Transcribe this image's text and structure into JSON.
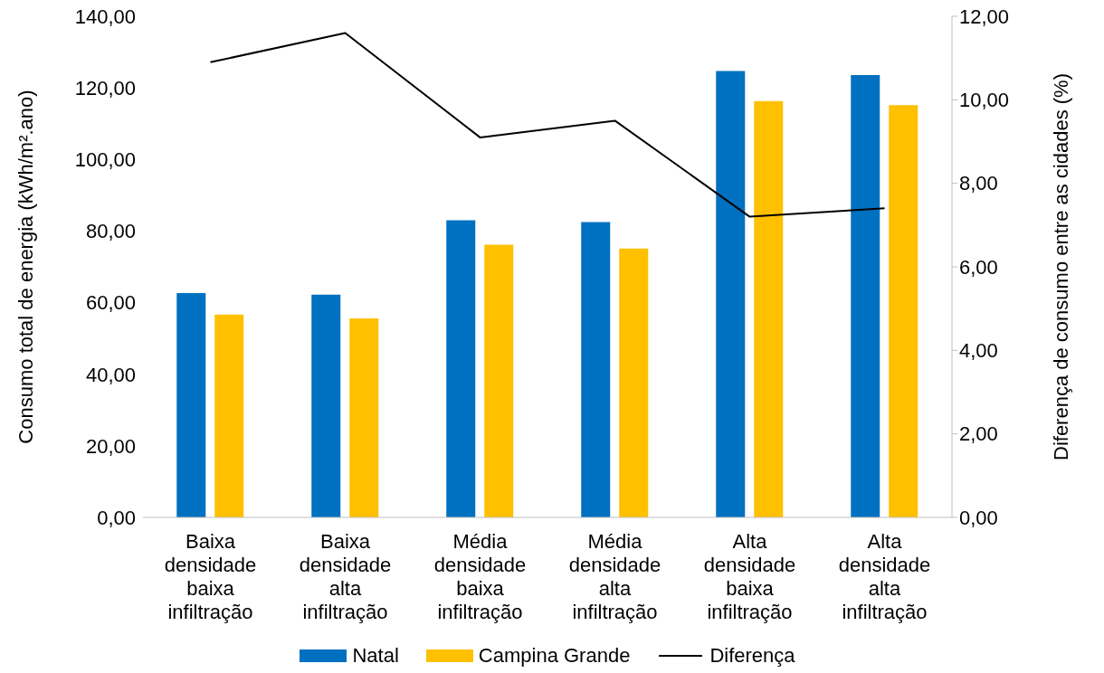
{
  "chart_data": {
    "type": "bar",
    "categories": [
      "Baixa densidade baixa infiltração",
      "Baixa densidade alta infiltração",
      "Média densidade baixa infiltração",
      "Média densidade alta infiltração",
      "Alta densidade baixa infiltração",
      "Alta densidade alta infiltração"
    ],
    "ylabel": "Consumo total de energia (kWh/m².ano)",
    "y2label": "Diferença de consumo entre as cidades (%)",
    "ylim": [
      0,
      140
    ],
    "yticks": [
      {
        "value": 0,
        "label": "0,00"
      },
      {
        "value": 20,
        "label": "20,00"
      },
      {
        "value": 40,
        "label": "40,00"
      },
      {
        "value": 60,
        "label": "60,00"
      },
      {
        "value": 80,
        "label": "80,00"
      },
      {
        "value": 100,
        "label": "100,00"
      },
      {
        "value": 120,
        "label": "120,00"
      },
      {
        "value": 140,
        "label": "140,00"
      }
    ],
    "y2lim": [
      0,
      12
    ],
    "y2ticks": [
      {
        "value": 0,
        "label": "0,00"
      },
      {
        "value": 2,
        "label": "2,00"
      },
      {
        "value": 4,
        "label": "4,00"
      },
      {
        "value": 6,
        "label": "6,00"
      },
      {
        "value": 8,
        "label": "8,00"
      },
      {
        "value": 10,
        "label": "10,00"
      },
      {
        "value": 12,
        "label": "12,00"
      }
    ],
    "series": [
      {
        "name": "Natal",
        "color": "#0070c0",
        "values": [
          62.7,
          62.2,
          83.0,
          82.5,
          124.7,
          123.6
        ]
      },
      {
        "name": "Campina Grande",
        "color": "#ffc000",
        "values": [
          56.7,
          55.6,
          76.2,
          75.1,
          116.3,
          115.2
        ]
      },
      {
        "name": "Diferença",
        "type": "line",
        "axis": "y2",
        "color": "#000000",
        "values": [
          10.9,
          11.6,
          9.1,
          9.5,
          7.2,
          7.4
        ]
      }
    ],
    "legend": "bottom",
    "marker": "none"
  }
}
